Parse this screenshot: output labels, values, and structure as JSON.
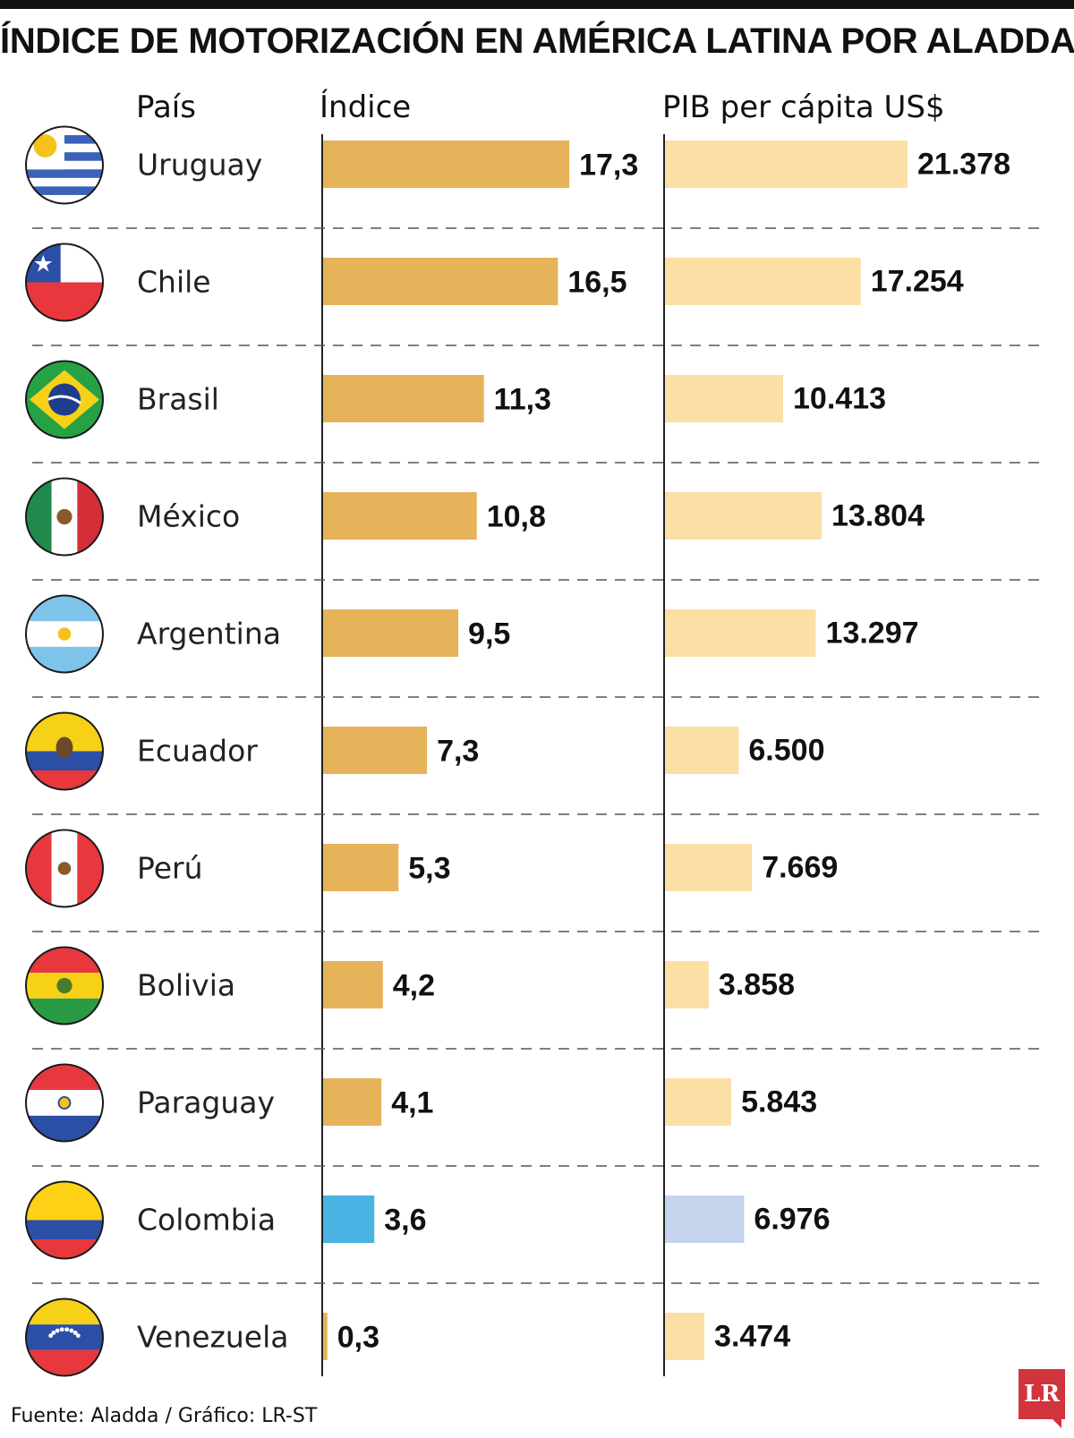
{
  "title": "ÍNDICE DE MOTORIZACIÓN EN AMÉRICA LATINA POR ALADDA",
  "headers": {
    "country": "País",
    "index": "Índice",
    "gdp": "PIB per cápita US$"
  },
  "footer": "Fuente: Aladda / Gráfico: LR-ST",
  "logo": "LR",
  "colors": {
    "index_bar": "#e6b35a",
    "gdp_bar": "#fcdfa4",
    "index_highlight": "#4ab3e3",
    "gdp_highlight": "#c4d4ec"
  },
  "chart_data": {
    "type": "bar",
    "orientation": "horizontal",
    "highlight_category": "Colombia",
    "categories": [
      "Uruguay",
      "Chile",
      "Brasil",
      "México",
      "Argentina",
      "Ecuador",
      "Perú",
      "Bolivia",
      "Paraguay",
      "Colombia",
      "Venezuela"
    ],
    "series": [
      {
        "name": "Índice",
        "values": [
          17.3,
          16.5,
          11.3,
          10.8,
          9.5,
          7.3,
          5.3,
          4.2,
          4.1,
          3.6,
          0.3
        ],
        "labels": [
          "17,3",
          "16,5",
          "11,3",
          "10,8",
          "9,5",
          "7,3",
          "5,3",
          "4,2",
          "4,1",
          "3,6",
          "0,3"
        ]
      },
      {
        "name": "PIB per cápita US$",
        "values": [
          21378,
          17254,
          10413,
          13804,
          13297,
          6500,
          7669,
          3858,
          5843,
          6976,
          3474
        ],
        "labels": [
          "21.378",
          "17.254",
          "10.413",
          "13.804",
          "13.297",
          "6.500",
          "7.669",
          "3.858",
          "5.843",
          "6.976",
          "3.474"
        ]
      }
    ],
    "flags": [
      "uruguay-flag",
      "chile-flag",
      "brasil-flag",
      "mexico-flag",
      "argentina-flag",
      "ecuador-flag",
      "peru-flag",
      "bolivia-flag",
      "paraguay-flag",
      "colombia-flag",
      "venezuela-flag"
    ],
    "xlim_index": [
      0,
      20
    ],
    "xlim_gdp": [
      0,
      25000
    ]
  }
}
